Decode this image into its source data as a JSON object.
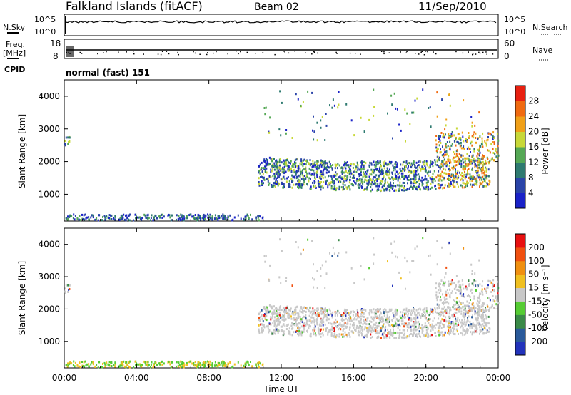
{
  "header": {
    "station": "Falkland Islands (fitACF)",
    "beam": "Beam 02",
    "date": "11/Sep/2010",
    "mode": "normal (fast) 151"
  },
  "left_labels": {
    "nsky": "N.Sky",
    "freq": "Freq.",
    "freq_unit": "[MHz]",
    "cpid": "CPID"
  },
  "right_labels": {
    "nsearch": "N.Search",
    "nave": "Nave"
  },
  "small_panels": {
    "noise": {
      "tick_top": "10^5",
      "tick_bottom": "10^0",
      "right_top": "10^5",
      "right_bottom": "10^0"
    },
    "freq": {
      "tick_top": "18",
      "tick_bottom": "8",
      "right_top": "60",
      "right_bottom": "0"
    }
  },
  "chart_data": [
    {
      "type": "heatmap",
      "name": "power",
      "ylabel": "Slant Range [km]",
      "ylim": [
        180,
        4500
      ],
      "yticks": [
        1000,
        2000,
        3000,
        4000
      ],
      "xticks": [
        "00:00",
        "04:00",
        "08:00",
        "12:00",
        "16:00",
        "20:00",
        "00:00"
      ],
      "xlim_hours": [
        0,
        24
      ],
      "colorbar": {
        "label": "Power [dB]",
        "ticks": [
          "4",
          "8",
          "12",
          "16",
          "20",
          "24",
          "28"
        ],
        "colors": [
          "#1a22c8",
          "#2a44a8",
          "#2e7a70",
          "#55a855",
          "#c8d838",
          "#f0a018",
          "#f06a10",
          "#e82010"
        ]
      }
    },
    {
      "type": "heatmap",
      "name": "velocity",
      "ylabel": "Slant Range [km]",
      "ylim": [
        180,
        4500
      ],
      "yticks": [
        1000,
        2000,
        3000,
        4000
      ],
      "xticks": [
        "00:00",
        "04:00",
        "08:00",
        "12:00",
        "16:00",
        "20:00",
        "00:00"
      ],
      "xlim_hours": [
        0,
        24
      ],
      "xlabel": "Time UT",
      "colorbar": {
        "label": "Velocity [m s⁻¹]",
        "ticks": [
          "200",
          "100",
          "50",
          "15",
          "-15",
          "-50",
          "-100",
          "-200"
        ],
        "colors": [
          "#2233bb",
          "#2a5a9a",
          "#3a8a48",
          "#55cc33",
          "#c8c8c8",
          "#f0c020",
          "#f09010",
          "#f05010",
          "#e81010"
        ]
      }
    }
  ]
}
